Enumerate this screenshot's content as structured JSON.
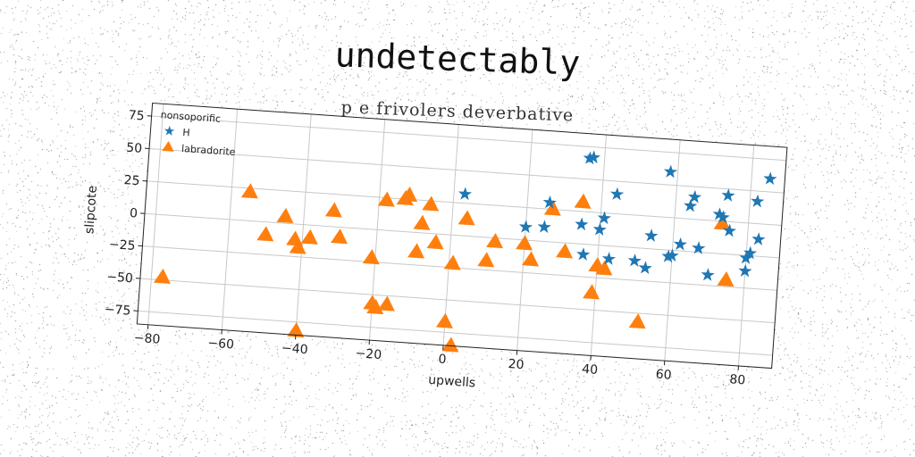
{
  "title": "undetectably",
  "subtitle": "p e frivolers deverbative",
  "colors": {
    "H": "#1f77b4",
    "labradorite": "#ff7f0e"
  },
  "chart_data": {
    "type": "scatter",
    "title": "undetectably",
    "subtitle": "p e frivolers deverbative",
    "xlabel": "upwells",
    "ylabel": "slipcote",
    "xlim": [
      -83,
      89
    ],
    "ylim": [
      -85,
      85
    ],
    "xticks": [
      -80,
      -60,
      -40,
      -20,
      0,
      20,
      40,
      60,
      80
    ],
    "yticks": [
      -75,
      -50,
      -25,
      0,
      25,
      50,
      75
    ],
    "xtick_labels": [
      "−80",
      "−60",
      "−40",
      "−20",
      "0",
      "20",
      "40",
      "60",
      "80"
    ],
    "ytick_labels": [
      "−75",
      "−50",
      "−25",
      "0",
      "25",
      "50",
      "75"
    ],
    "grid": true,
    "legend": {
      "title": "nonsoporific",
      "position": "top-left"
    },
    "series": [
      {
        "name": "H",
        "marker": "star",
        "points": [
          [
            3,
            32
          ],
          [
            20,
            10
          ],
          [
            25,
            11
          ],
          [
            26,
            30
          ],
          [
            35,
            15
          ],
          [
            36,
            66
          ],
          [
            37,
            67
          ],
          [
            36,
            -8
          ],
          [
            40,
            12
          ],
          [
            41,
            21
          ],
          [
            44,
            40
          ],
          [
            43,
            -10
          ],
          [
            50,
            -10
          ],
          [
            53,
            -15
          ],
          [
            54,
            10
          ],
          [
            58,
            60
          ],
          [
            59,
            -5
          ],
          [
            60,
            -4
          ],
          [
            62,
            5
          ],
          [
            64,
            35
          ],
          [
            65,
            42
          ],
          [
            67,
            3
          ],
          [
            70,
            -17
          ],
          [
            72,
            30
          ],
          [
            73,
            28
          ],
          [
            74,
            45
          ],
          [
            75,
            18
          ],
          [
            80,
            -2
          ],
          [
            80,
            -12
          ],
          [
            81,
            2
          ],
          [
            82,
            42
          ],
          [
            83,
            13
          ],
          [
            85,
            60
          ]
        ]
      },
      {
        "name": "labradorite",
        "marker": "triangle",
        "points": [
          [
            -77,
            -48
          ],
          [
            -55,
            22
          ],
          [
            -50,
            -10
          ],
          [
            -45,
            5
          ],
          [
            -42,
            -12
          ],
          [
            -41,
            -18
          ],
          [
            -40,
            -82
          ],
          [
            -38,
            -10
          ],
          [
            -32,
            12
          ],
          [
            -30,
            -8
          ],
          [
            -21,
            -22
          ],
          [
            -20,
            -57
          ],
          [
            -19,
            -60
          ],
          [
            -18,
            23
          ],
          [
            -16,
            -57
          ],
          [
            -13,
            25
          ],
          [
            -12,
            28
          ],
          [
            -9,
            -15
          ],
          [
            -8,
            7
          ],
          [
            -6,
            22
          ],
          [
            -4,
            -7
          ],
          [
            0,
            -67
          ],
          [
            1,
            -22
          ],
          [
            2,
            -85
          ],
          [
            4,
            13
          ],
          [
            10,
            -18
          ],
          [
            12,
            -3
          ],
          [
            20,
            -3
          ],
          [
            22,
            -15
          ],
          [
            27,
            25
          ],
          [
            31,
            -7
          ],
          [
            35,
            32
          ],
          [
            39,
            -37
          ],
          [
            40,
            -16
          ],
          [
            42,
            -18
          ],
          [
            52,
            -57
          ],
          [
            73,
            23
          ],
          [
            75,
            -20
          ]
        ]
      }
    ]
  }
}
